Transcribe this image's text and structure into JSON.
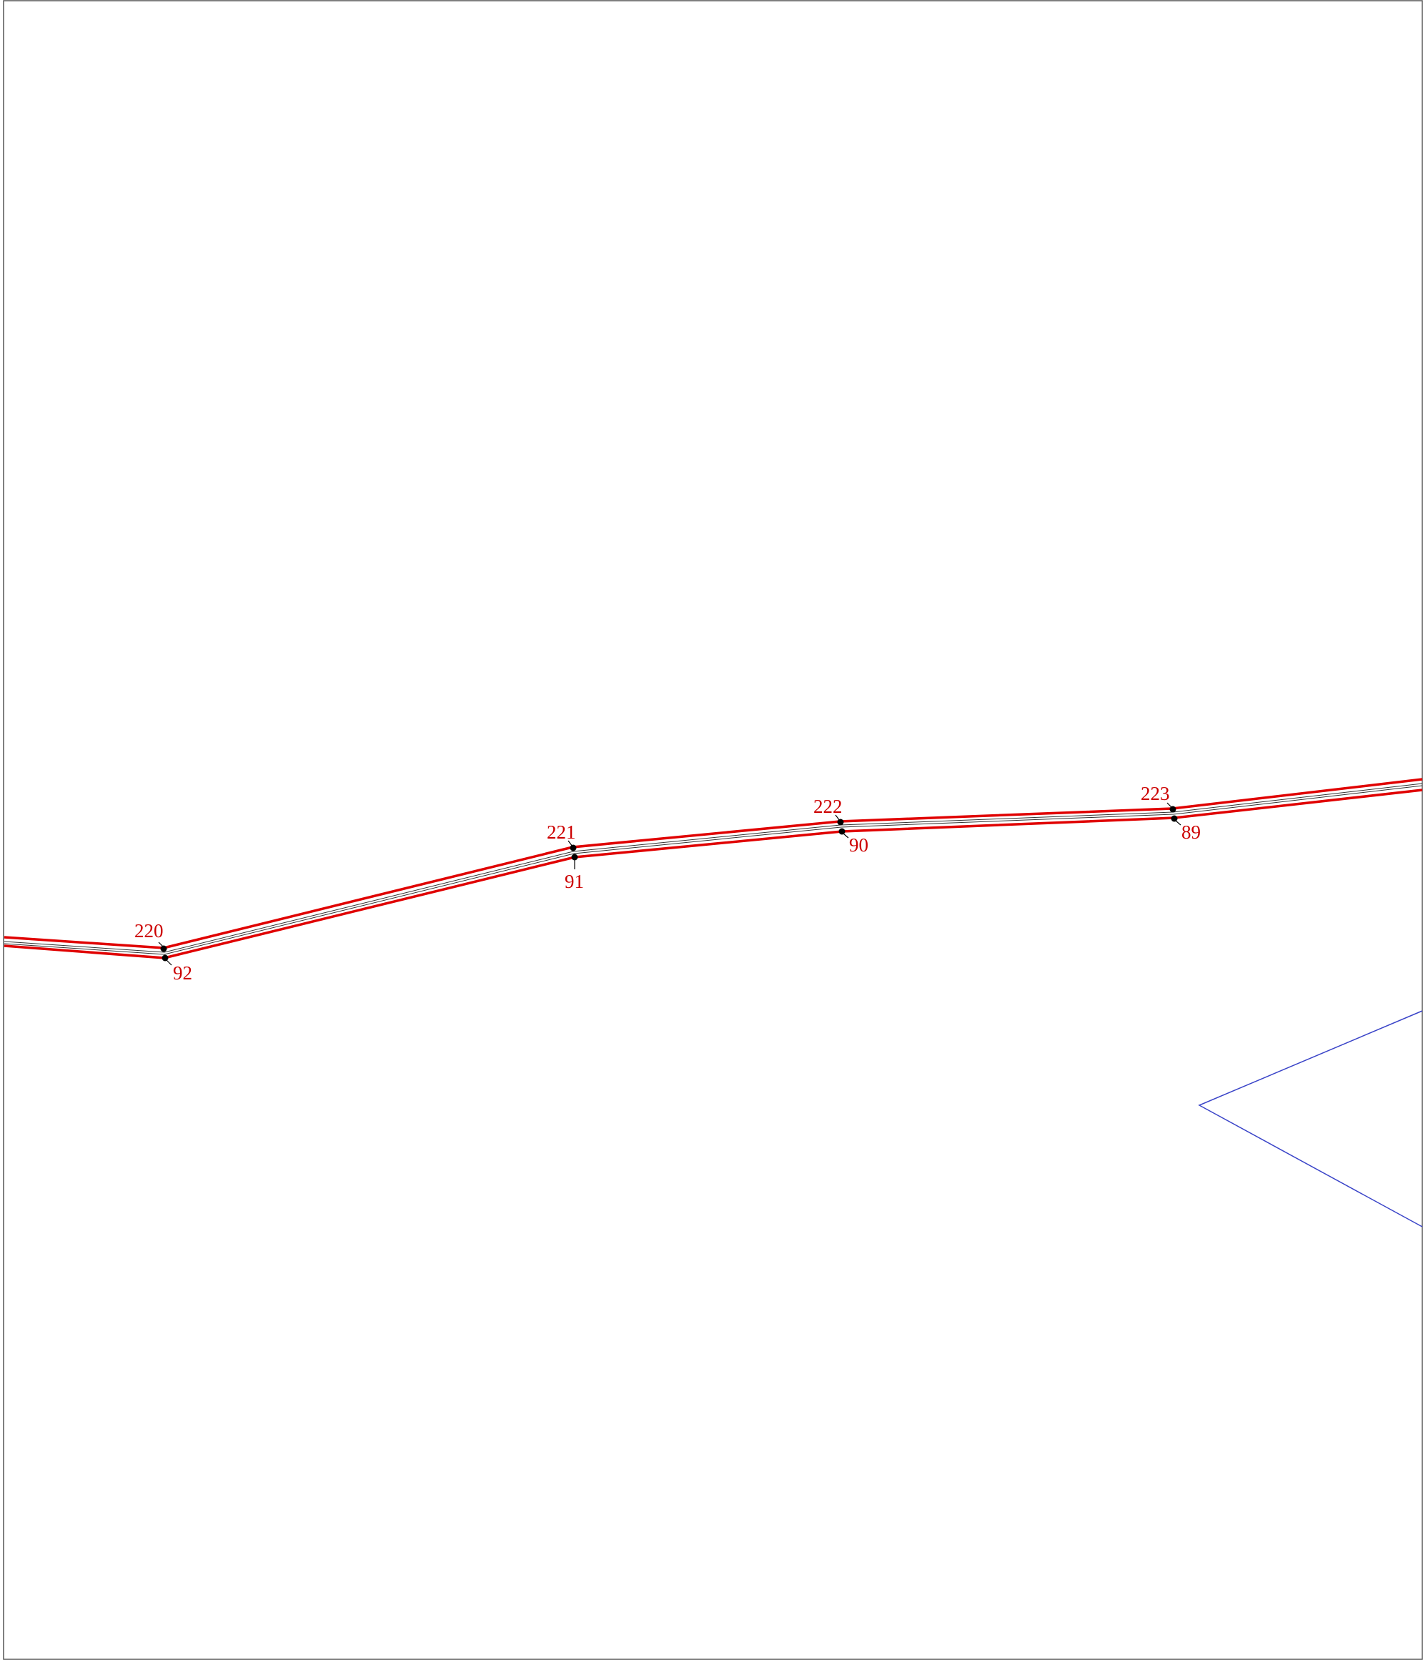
{
  "drawing": {
    "colors": {
      "background": "#ffffff",
      "frame": "#555555",
      "boundary_line": "#e00000",
      "center_line": "#222222",
      "point_marker": "#000000",
      "label_text": "#cc0000",
      "parcel_line": "#3a44c8"
    },
    "upper_points": [
      {
        "id": "p220",
        "label": "220"
      },
      {
        "id": "p221",
        "label": "221"
      },
      {
        "id": "p222",
        "label": "222"
      },
      {
        "id": "p223",
        "label": "223"
      }
    ],
    "lower_points": [
      {
        "id": "p92",
        "label": "92"
      },
      {
        "id": "p91",
        "label": "91"
      },
      {
        "id": "p90",
        "label": "90"
      },
      {
        "id": "p89",
        "label": "89"
      }
    ]
  }
}
